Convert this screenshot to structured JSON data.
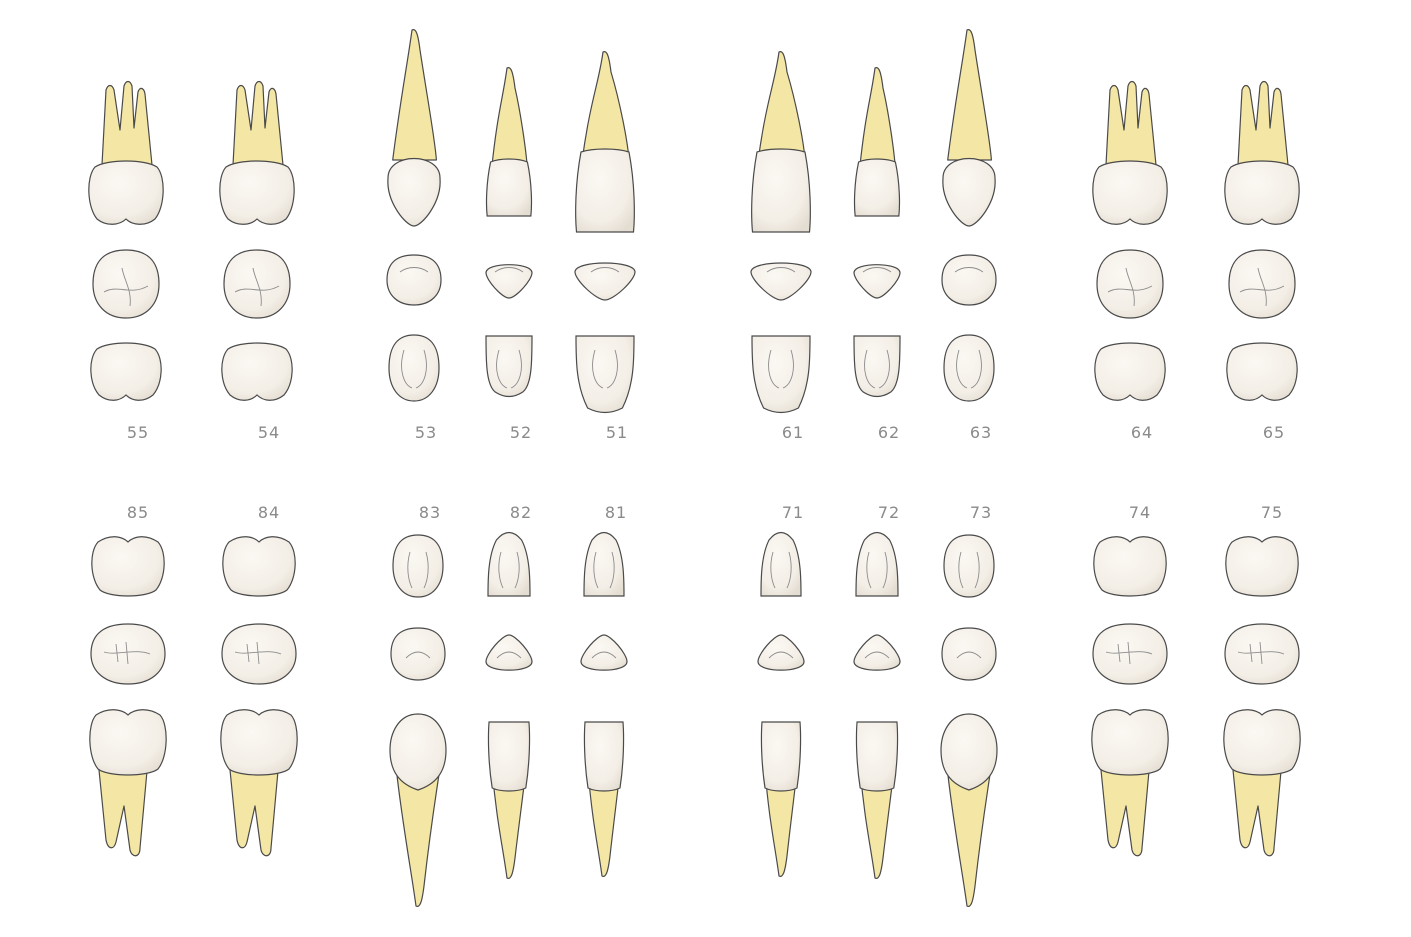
{
  "upper": {
    "teeth": [
      {
        "id": "55",
        "label": "55",
        "kind": "molar"
      },
      {
        "id": "54",
        "label": "54",
        "kind": "molar"
      },
      {
        "id": "53",
        "label": "53",
        "kind": "canine"
      },
      {
        "id": "52",
        "label": "52",
        "kind": "incisor-lateral"
      },
      {
        "id": "51",
        "label": "51",
        "kind": "incisor-central"
      },
      {
        "id": "61",
        "label": "61",
        "kind": "incisor-central"
      },
      {
        "id": "62",
        "label": "62",
        "kind": "incisor-lateral"
      },
      {
        "id": "63",
        "label": "63",
        "kind": "canine"
      },
      {
        "id": "64",
        "label": "64",
        "kind": "molar"
      },
      {
        "id": "65",
        "label": "65",
        "kind": "molar"
      }
    ]
  },
  "lower": {
    "teeth": [
      {
        "id": "85",
        "label": "85",
        "kind": "molar"
      },
      {
        "id": "84",
        "label": "84",
        "kind": "molar"
      },
      {
        "id": "83",
        "label": "83",
        "kind": "canine"
      },
      {
        "id": "82",
        "label": "82",
        "kind": "incisor-lateral"
      },
      {
        "id": "81",
        "label": "81",
        "kind": "incisor-central"
      },
      {
        "id": "71",
        "label": "71",
        "kind": "incisor-central"
      },
      {
        "id": "72",
        "label": "72",
        "kind": "incisor-lateral"
      },
      {
        "id": "73",
        "label": "73",
        "kind": "canine"
      },
      {
        "id": "74",
        "label": "74",
        "kind": "molar"
      },
      {
        "id": "75",
        "label": "75",
        "kind": "molar"
      }
    ]
  },
  "colors": {
    "root": "#f4e7a6",
    "crown": "#f7f3ec",
    "outline": "#4a4a4a",
    "label": "#8a8a8a"
  }
}
